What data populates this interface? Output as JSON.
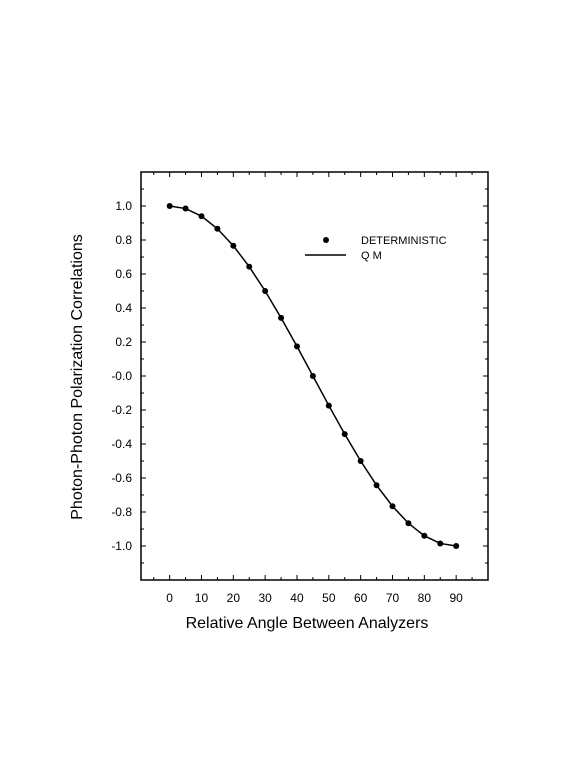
{
  "chart_data": {
    "type": "line",
    "xlabel": "Relative Angle Between Analyzers",
    "ylabel": "Photon-Photon Polarization Correlations",
    "xlim": [
      -9,
      100
    ],
    "ylim": [
      -1.2,
      1.2
    ],
    "x_ticks": [
      0,
      10,
      20,
      30,
      40,
      50,
      60,
      70,
      80,
      90
    ],
    "x_tick_labels": [
      "0",
      "10",
      "20",
      "30",
      "40",
      "50",
      "60",
      "70",
      "80",
      "90"
    ],
    "y_ticks": [
      1.0,
      0.8,
      0.6,
      0.4,
      0.2,
      0.0,
      -0.2,
      -0.4,
      -0.6,
      -0.8,
      -1.0
    ],
    "y_tick_labels": [
      "1.0",
      "0.8",
      "0.6",
      "0.4",
      "0.2",
      "-0.0",
      "-0.2",
      "-0.4",
      "-0.6",
      "-0.8",
      "-1.0"
    ],
    "grid": false,
    "legend_position": "top-right",
    "series": [
      {
        "name": "DETERMINISTIC",
        "style": "markers",
        "color": "#000000",
        "x": [
          0,
          5,
          10,
          15,
          20,
          25,
          30,
          35,
          40,
          45,
          50,
          55,
          60,
          65,
          70,
          75,
          80,
          85,
          90
        ],
        "y": [
          1.0,
          0.985,
          0.94,
          0.866,
          0.766,
          0.643,
          0.5,
          0.342,
          0.174,
          0.0,
          -0.174,
          -0.342,
          -0.5,
          -0.643,
          -0.766,
          -0.866,
          -0.94,
          -0.985,
          -1.0
        ]
      },
      {
        "name": "Q M",
        "style": "line",
        "color": "#000000",
        "x": [
          0,
          5,
          10,
          15,
          20,
          25,
          30,
          35,
          40,
          45,
          50,
          55,
          60,
          65,
          70,
          75,
          80,
          85,
          90
        ],
        "y": [
          1.0,
          0.985,
          0.94,
          0.866,
          0.766,
          0.643,
          0.5,
          0.342,
          0.174,
          0.0,
          -0.174,
          -0.342,
          -0.5,
          -0.643,
          -0.766,
          -0.866,
          -0.94,
          -0.985,
          -1.0
        ]
      }
    ]
  }
}
